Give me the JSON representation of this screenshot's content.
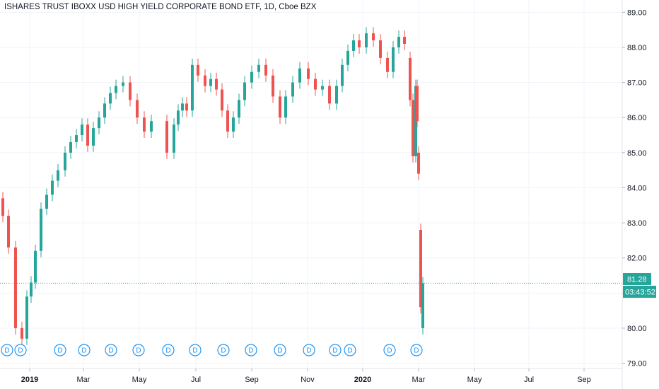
{
  "title": "ISHARES TRUST IBOXX USD HIGH YIELD CORPORATE BOND ETF, 1D, Cboe BZX",
  "colors": {
    "up": "#26a69a",
    "down": "#ef5350",
    "grid": "#f0f3fa",
    "axis": "#131722",
    "dividend": "#2196f3",
    "price_line": "#26a69a"
  },
  "badges": {
    "price": "81.28",
    "countdown": "03:43:52"
  },
  "dividend_label": "D",
  "chart_data": {
    "type": "candlestick",
    "title": "ISHARES TRUST IBOXX USD HIGH YIELD CORPORATE BOND ETF, 1D, Cboe BZX",
    "ylim": [
      78.85,
      89.35
    ],
    "y_ticks": [
      "79.00",
      "80.00",
      "81.00",
      "82.00",
      "83.00",
      "84.00",
      "85.00",
      "86.00",
      "87.00",
      "88.00",
      "89.00"
    ],
    "x_ticks": [
      {
        "label": "2019",
        "bold": true
      },
      {
        "label": "Mar",
        "bold": false
      },
      {
        "label": "May",
        "bold": false
      },
      {
        "label": "Jul",
        "bold": false
      },
      {
        "label": "Sep",
        "bold": false
      },
      {
        "label": "Nov",
        "bold": false
      },
      {
        "label": "2020",
        "bold": true
      },
      {
        "label": "Mar",
        "bold": false
      },
      {
        "label": "May",
        "bold": false
      },
      {
        "label": "Jul",
        "bold": false
      },
      {
        "label": "Sep",
        "bold": false
      }
    ],
    "grid": true,
    "last_price": 81.28,
    "series": [
      {
        "period": "Dec 2018",
        "open": 83.7,
        "close": 83.2
      },
      {
        "period": "Dec 2018",
        "open": 83.2,
        "close": 82.3
      },
      {
        "period": "Dec 2018",
        "open": 82.3,
        "close": 80.0
      },
      {
        "period": "Dec 2018",
        "open": 80.0,
        "close": 79.7
      },
      {
        "period": "Dec 2018",
        "open": 79.7,
        "close": 80.9
      },
      {
        "period": "Jan 2019",
        "open": 80.9,
        "close": 81.3
      },
      {
        "period": "Jan 2019",
        "open": 81.3,
        "close": 82.2
      },
      {
        "period": "Jan 2019",
        "open": 82.2,
        "close": 83.4
      },
      {
        "period": "Jan 2019",
        "open": 83.4,
        "close": 83.8
      },
      {
        "period": "Jan 2019",
        "open": 83.8,
        "close": 84.2
      },
      {
        "period": "Feb 2019",
        "open": 84.2,
        "close": 84.5
      },
      {
        "period": "Feb 2019",
        "open": 84.5,
        "close": 85.0
      },
      {
        "period": "Feb 2019",
        "open": 85.0,
        "close": 85.3
      },
      {
        "period": "Feb 2019",
        "open": 85.3,
        "close": 85.5
      },
      {
        "period": "Mar 2019",
        "open": 85.5,
        "close": 85.8
      },
      {
        "period": "Mar 2019",
        "open": 85.8,
        "close": 85.2
      },
      {
        "period": "Mar 2019",
        "open": 85.2,
        "close": 85.7
      },
      {
        "period": "Mar 2019",
        "open": 85.7,
        "close": 86.0
      },
      {
        "period": "Apr 2019",
        "open": 86.0,
        "close": 86.4
      },
      {
        "period": "Apr 2019",
        "open": 86.4,
        "close": 86.7
      },
      {
        "period": "Apr 2019",
        "open": 86.7,
        "close": 86.9
      },
      {
        "period": "Apr 2019",
        "open": 86.9,
        "close": 87.0
      },
      {
        "period": "May 2019",
        "open": 87.0,
        "close": 86.5
      },
      {
        "period": "May 2019",
        "open": 86.5,
        "close": 86.0
      },
      {
        "period": "May 2019",
        "open": 86.0,
        "close": 85.6
      },
      {
        "period": "May 2019",
        "open": 85.6,
        "close": 85.9
      },
      {
        "period": "May 2019",
        "open": 85.9,
        "close": 85.0
      },
      {
        "period": "Jun 2019",
        "open": 85.0,
        "close": 85.8
      },
      {
        "period": "Jun 2019",
        "open": 85.8,
        "close": 86.2
      },
      {
        "period": "Jun 2019",
        "open": 86.2,
        "close": 86.4
      },
      {
        "period": "Jun 2019",
        "open": 86.4,
        "close": 86.2
      },
      {
        "period": "Jun 2019",
        "open": 86.2,
        "close": 87.5
      },
      {
        "period": "Jul 2019",
        "open": 87.5,
        "close": 87.2
      },
      {
        "period": "Jul 2019",
        "open": 87.2,
        "close": 86.9
      },
      {
        "period": "Jul 2019",
        "open": 86.9,
        "close": 87.1
      },
      {
        "period": "Jul 2019",
        "open": 87.1,
        "close": 86.8
      },
      {
        "period": "Aug 2019",
        "open": 86.8,
        "close": 86.2
      },
      {
        "period": "Aug 2019",
        "open": 86.2,
        "close": 85.6
      },
      {
        "period": "Aug 2019",
        "open": 85.6,
        "close": 86.0
      },
      {
        "period": "Aug 2019",
        "open": 86.0,
        "close": 86.5
      },
      {
        "period": "Sep 2019",
        "open": 86.5,
        "close": 87.0
      },
      {
        "period": "Sep 2019",
        "open": 87.0,
        "close": 87.3
      },
      {
        "period": "Sep 2019",
        "open": 87.3,
        "close": 87.5
      },
      {
        "period": "Sep 2019",
        "open": 87.5,
        "close": 87.2
      },
      {
        "period": "Oct 2019",
        "open": 87.2,
        "close": 86.6
      },
      {
        "period": "Oct 2019",
        "open": 86.6,
        "close": 86.0
      },
      {
        "period": "Oct 2019",
        "open": 86.0,
        "close": 86.6
      },
      {
        "period": "Oct 2019",
        "open": 86.6,
        "close": 87.0
      },
      {
        "period": "Oct 2019",
        "open": 87.0,
        "close": 87.4
      },
      {
        "period": "Nov 2019",
        "open": 87.4,
        "close": 87.1
      },
      {
        "period": "Nov 2019",
        "open": 87.1,
        "close": 86.8
      },
      {
        "period": "Nov 2019",
        "open": 86.8,
        "close": 86.9
      },
      {
        "period": "Nov 2019",
        "open": 86.9,
        "close": 86.4
      },
      {
        "period": "Dec 2019",
        "open": 86.4,
        "close": 86.9
      },
      {
        "period": "Dec 2019",
        "open": 86.9,
        "close": 87.5
      },
      {
        "period": "Dec 2019",
        "open": 87.5,
        "close": 87.9
      },
      {
        "period": "Dec 2019",
        "open": 87.9,
        "close": 88.2
      },
      {
        "period": "Jan 2020",
        "open": 88.2,
        "close": 88.0
      },
      {
        "period": "Jan 2020",
        "open": 88.0,
        "close": 88.4
      },
      {
        "period": "Jan 2020",
        "open": 88.4,
        "close": 88.2
      },
      {
        "period": "Jan 2020",
        "open": 88.2,
        "close": 87.7
      },
      {
        "period": "Feb 2020",
        "open": 87.7,
        "close": 87.3
      },
      {
        "period": "Feb 2020",
        "open": 87.3,
        "close": 88.0
      },
      {
        "period": "Feb 2020",
        "open": 88.0,
        "close": 88.3
      },
      {
        "period": "Feb 2020",
        "open": 88.3,
        "close": 88.1
      },
      {
        "period": "Feb 2020",
        "open": 87.7,
        "close": 86.5
      },
      {
        "period": "Feb 2020",
        "open": 86.5,
        "close": 84.9
      },
      {
        "period": "Mar 2020",
        "open": 84.9,
        "close": 86.9
      },
      {
        "period": "Mar 2020",
        "open": 86.9,
        "close": 85.9
      },
      {
        "period": "Mar 2020",
        "open": 85.0,
        "close": 84.4
      },
      {
        "period": "Mar 2020",
        "open": 82.8,
        "close": 80.6
      },
      {
        "period": "Mar 2020",
        "open": 80.0,
        "close": 81.28
      }
    ]
  }
}
